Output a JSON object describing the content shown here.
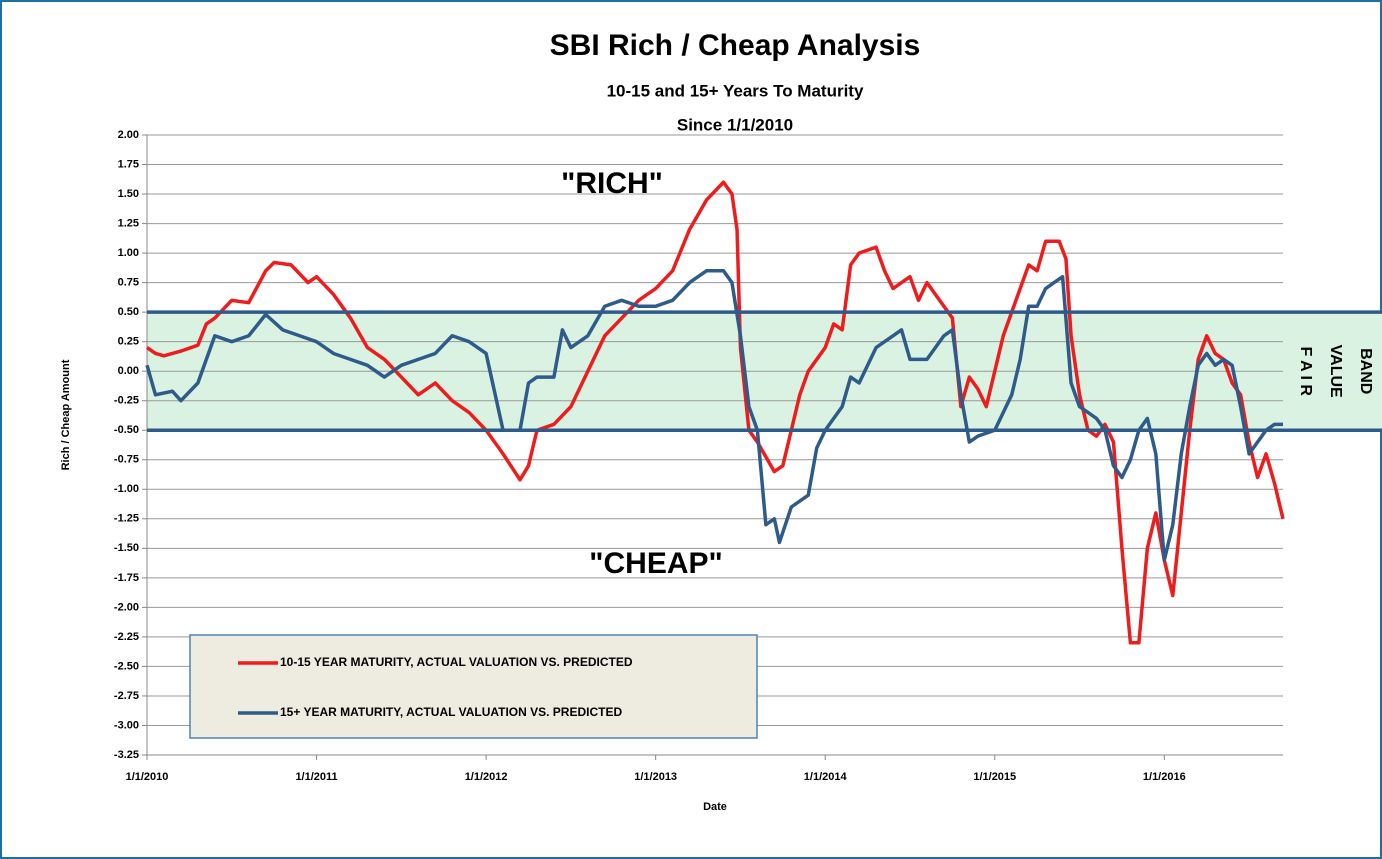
{
  "chart_data": {
    "type": "line",
    "title": "SBI Rich / Cheap Analysis",
    "subtitle": [
      "10-15 and 15+ Years To Maturity",
      "Since 1/1/2010"
    ],
    "x_label": "Date",
    "y_label": "Rich / Cheap Amount",
    "annotations": [
      "\"RICH\"",
      "\"CHEAP\""
    ],
    "band": {
      "range": [
        -0.5,
        0.5
      ],
      "color": "#d9f2e1",
      "edge_color": "#2e5b8a",
      "label": [
        "F A I R",
        "VALUE",
        "BAND"
      ]
    },
    "xlim": [
      2010,
      2016.7
    ],
    "xticks": [
      {
        "value": 2010,
        "label": "1/1/2010"
      },
      {
        "value": 2011,
        "label": "1/1/2011"
      },
      {
        "value": 2012,
        "label": "1/1/2012"
      },
      {
        "value": 2013,
        "label": "1/1/2013"
      },
      {
        "value": 2014,
        "label": "1/1/2014"
      },
      {
        "value": 2015,
        "label": "1/1/2015"
      },
      {
        "value": 2016,
        "label": "1/1/2016"
      }
    ],
    "ylim": [
      -3.25,
      2
    ],
    "yticks": [
      {
        "value": 2,
        "label": "2.00"
      },
      {
        "value": 1.75,
        "label": "1.75"
      },
      {
        "value": 1.5,
        "label": "1.50"
      },
      {
        "value": 1.25,
        "label": "1.25"
      },
      {
        "value": 1,
        "label": "1.00"
      },
      {
        "value": 0.75,
        "label": "0.75"
      },
      {
        "value": 0.5,
        "label": "0.50"
      },
      {
        "value": 0.25,
        "label": "0.25"
      },
      {
        "value": 0,
        "label": "0.00"
      },
      {
        "value": -0.25,
        "label": "-0.25"
      },
      {
        "value": -0.5,
        "label": "-0.50"
      },
      {
        "value": -0.75,
        "label": "-0.75"
      },
      {
        "value": -1,
        "label": "-1.00"
      },
      {
        "value": -1.25,
        "label": "-1.25"
      },
      {
        "value": -1.5,
        "label": "-1.50"
      },
      {
        "value": -1.75,
        "label": "-1.75"
      },
      {
        "value": -2,
        "label": "-2.00"
      },
      {
        "value": -2.25,
        "label": "-2.25"
      },
      {
        "value": -2.5,
        "label": "-2.50"
      },
      {
        "value": -2.75,
        "label": "-2.75"
      },
      {
        "value": -3,
        "label": "-3.00"
      },
      {
        "value": -3.25,
        "label": "-3.25"
      }
    ],
    "grid": true,
    "legend": "bottom-left",
    "series": [
      {
        "name": "10-15 YEAR MATURITY, ACTUAL VALUATION VS. PREDICTED",
        "color": "#ee1c1c",
        "x": [
          2010,
          2010.05,
          2010.1,
          2010.2,
          2010.3,
          2010.35,
          2010.4,
          2010.5,
          2010.6,
          2010.7,
          2010.75,
          2010.85,
          2010.95,
          2011,
          2011.1,
          2011.2,
          2011.3,
          2011.4,
          2011.5,
          2011.6,
          2011.7,
          2011.8,
          2011.9,
          2012,
          2012.1,
          2012.2,
          2012.25,
          2012.3,
          2012.4,
          2012.5,
          2012.6,
          2012.7,
          2012.8,
          2012.9,
          2013,
          2013.1,
          2013.2,
          2013.3,
          2013.4,
          2013.45,
          2013.48,
          2013.5,
          2013.55,
          2013.6,
          2013.7,
          2013.75,
          2013.8,
          2013.85,
          2013.9,
          2014,
          2014.05,
          2014.1,
          2014.15,
          2014.2,
          2014.3,
          2014.35,
          2014.4,
          2014.5,
          2014.55,
          2014.6,
          2014.7,
          2014.75,
          2014.8,
          2014.85,
          2014.9,
          2014.95,
          2015,
          2015.05,
          2015.1,
          2015.2,
          2015.25,
          2015.3,
          2015.38,
          2015.42,
          2015.45,
          2015.5,
          2015.55,
          2015.6,
          2015.65,
          2015.7,
          2015.75,
          2015.8,
          2015.85,
          2015.9,
          2015.95,
          2016,
          2016.05,
          2016.1,
          2016.15,
          2016.2,
          2016.25,
          2016.3,
          2016.35,
          2016.4,
          2016.45,
          2016.5,
          2016.55,
          2016.6,
          2016.65,
          2016.7
        ],
        "values": [
          0.2,
          0.15,
          0.13,
          0.17,
          0.22,
          0.4,
          0.45,
          0.6,
          0.58,
          0.85,
          0.92,
          0.9,
          0.75,
          0.8,
          0.65,
          0.45,
          0.2,
          0.1,
          -0.05,
          -0.2,
          -0.1,
          -0.25,
          -0.35,
          -0.5,
          -0.7,
          -0.92,
          -0.8,
          -0.5,
          -0.45,
          -0.3,
          0,
          0.3,
          0.45,
          0.6,
          0.7,
          0.85,
          1.2,
          1.45,
          1.6,
          1.5,
          1.2,
          0.2,
          -0.5,
          -0.6,
          -0.85,
          -0.8,
          -0.5,
          -0.2,
          0,
          0.2,
          0.4,
          0.35,
          0.9,
          1,
          1.05,
          0.85,
          0.7,
          0.8,
          0.6,
          0.75,
          0.55,
          0.45,
          -0.3,
          -0.05,
          -0.15,
          -0.3,
          0,
          0.3,
          0.5,
          0.9,
          0.85,
          1.1,
          1.1,
          0.95,
          0.3,
          -0.2,
          -0.5,
          -0.55,
          -0.45,
          -0.6,
          -1.5,
          -2.3,
          -2.3,
          -1.5,
          -1.2,
          -1.6,
          -1.9,
          -1.2,
          -0.5,
          0.1,
          0.3,
          0.15,
          0.1,
          -0.1,
          -0.2,
          -0.6,
          -0.9,
          -0.7,
          -0.95,
          -1.25
        ]
      },
      {
        "name": "15+ YEAR MATURITY, ACTUAL VALUATION VS. PREDICTED",
        "color": "#2e5b8a",
        "x": [
          2010,
          2010.05,
          2010.15,
          2010.2,
          2010.3,
          2010.4,
          2010.5,
          2010.6,
          2010.7,
          2010.8,
          2010.9,
          2011,
          2011.1,
          2011.2,
          2011.3,
          2011.4,
          2011.5,
          2011.6,
          2011.7,
          2011.8,
          2011.9,
          2012,
          2012.1,
          2012.2,
          2012.25,
          2012.3,
          2012.4,
          2012.45,
          2012.5,
          2012.6,
          2012.7,
          2012.8,
          2012.9,
          2013,
          2013.1,
          2013.2,
          2013.3,
          2013.4,
          2013.45,
          2013.5,
          2013.55,
          2013.6,
          2013.65,
          2013.7,
          2013.73,
          2013.8,
          2013.9,
          2013.95,
          2014,
          2014.1,
          2014.15,
          2014.2,
          2014.3,
          2014.4,
          2014.45,
          2014.5,
          2014.6,
          2014.7,
          2014.75,
          2014.8,
          2014.85,
          2014.9,
          2015,
          2015.1,
          2015.15,
          2015.2,
          2015.25,
          2015.3,
          2015.35,
          2015.4,
          2015.45,
          2015.5,
          2015.6,
          2015.65,
          2015.7,
          2015.75,
          2015.8,
          2015.85,
          2015.9,
          2015.95,
          2016,
          2016.05,
          2016.1,
          2016.15,
          2016.2,
          2016.25,
          2016.3,
          2016.35,
          2016.4,
          2016.45,
          2016.5,
          2016.55,
          2016.6,
          2016.65,
          2016.7
        ],
        "values": [
          0.05,
          -0.2,
          -0.17,
          -0.25,
          -0.1,
          0.3,
          0.25,
          0.3,
          0.48,
          0.35,
          0.3,
          0.25,
          0.15,
          0.1,
          0.05,
          -0.05,
          0.05,
          0.1,
          0.15,
          0.3,
          0.25,
          0.15,
          -0.5,
          -0.5,
          -0.1,
          -0.05,
          -0.05,
          0.35,
          0.2,
          0.3,
          0.55,
          0.6,
          0.55,
          0.55,
          0.6,
          0.75,
          0.85,
          0.85,
          0.75,
          0.3,
          -0.3,
          -0.5,
          -1.3,
          -1.25,
          -1.45,
          -1.15,
          -1.05,
          -0.65,
          -0.5,
          -0.3,
          -0.05,
          -0.1,
          0.2,
          0.3,
          0.35,
          0.1,
          0.1,
          0.3,
          0.35,
          -0.2,
          -0.6,
          -0.55,
          -0.5,
          -0.2,
          0.1,
          0.55,
          0.55,
          0.7,
          0.75,
          0.8,
          -0.1,
          -0.3,
          -0.4,
          -0.5,
          -0.8,
          -0.9,
          -0.75,
          -0.5,
          -0.4,
          -0.7,
          -1.6,
          -1.3,
          -0.7,
          -0.3,
          0.05,
          0.15,
          0.05,
          0.1,
          0.05,
          -0.3,
          -0.7,
          -0.6,
          -0.5,
          -0.45,
          -0.45
        ]
      }
    ]
  }
}
